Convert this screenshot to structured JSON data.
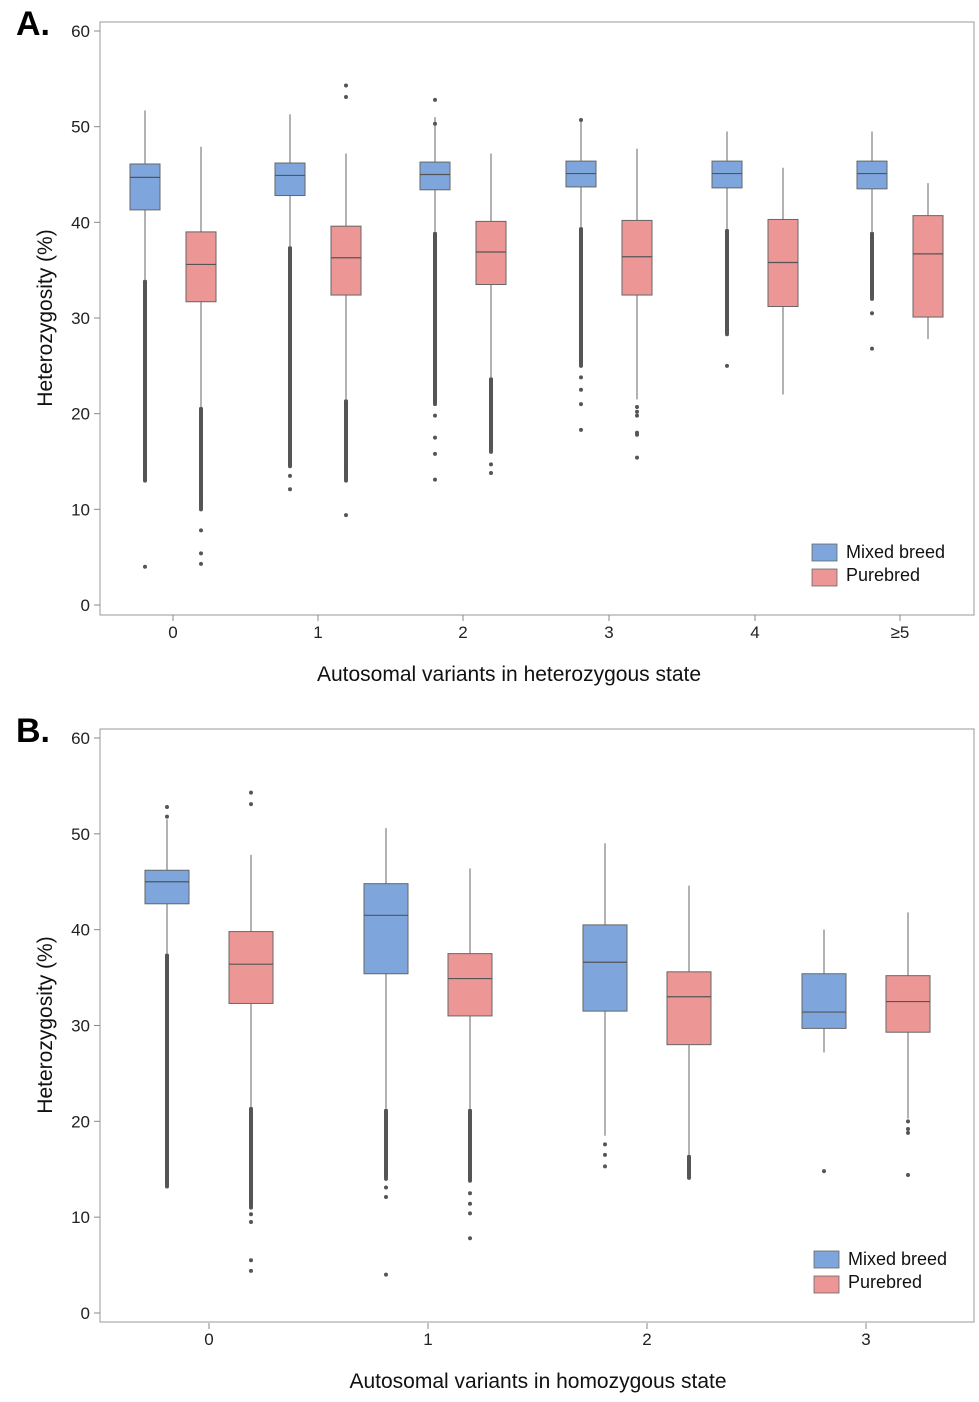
{
  "colors": {
    "mixed": "#7ea6dc",
    "purebred": "#ec9696",
    "median": "#555555",
    "whisker": "#666666",
    "outlier": "#555555",
    "frame": "#999999"
  },
  "chart_data": [
    {
      "panel": "A.",
      "type": "box",
      "xlabel": "Autosomal variants in heterozygous state",
      "ylabel": "Heterozygosity (%)",
      "ylim": [
        0,
        60
      ],
      "yticks": [
        "0",
        "10",
        "20",
        "30",
        "40",
        "50",
        "60"
      ],
      "categories": [
        "0",
        "1",
        "2",
        "3",
        "4",
        "≥5"
      ],
      "legend": {
        "position": "bottom-right",
        "items": [
          "Mixed breed",
          "Purebred"
        ]
      },
      "series": [
        {
          "name": "Mixed breed",
          "boxes": [
            {
              "q1": 41.3,
              "median": 44.7,
              "q3": 46.1,
              "whisker_low": 34.0,
              "whisker_high": 51.7,
              "outlier_band": [
                13.0,
                34.0
              ],
              "outliers": [
                4.0
              ]
            },
            {
              "q1": 42.8,
              "median": 44.9,
              "q3": 46.2,
              "whisker_low": 37.5,
              "whisker_high": 51.3,
              "outlier_band": [
                14.5,
                37.5
              ],
              "outliers": [
                12.1,
                13.5
              ]
            },
            {
              "q1": 43.4,
              "median": 45.0,
              "q3": 46.3,
              "whisker_low": 39.0,
              "whisker_high": 51.0,
              "outlier_band": [
                21.0,
                39.0
              ],
              "outliers": [
                13.1,
                15.8,
                17.5,
                19.8,
                52.8,
                50.3
              ]
            },
            {
              "q1": 43.7,
              "median": 45.1,
              "q3": 46.4,
              "whisker_low": 39.5,
              "whisker_high": 50.5,
              "outlier_band": [
                25.0,
                39.5
              ],
              "outliers": [
                18.3,
                21.0,
                22.5,
                23.8,
                50.7
              ]
            },
            {
              "q1": 43.6,
              "median": 45.1,
              "q3": 46.4,
              "whisker_low": 39.3,
              "whisker_high": 49.5,
              "outlier_band": [
                28.3,
                39.3
              ],
              "outliers": [
                25.0
              ]
            },
            {
              "q1": 43.5,
              "median": 45.1,
              "q3": 46.4,
              "whisker_low": 39.0,
              "whisker_high": 49.5,
              "outlier_band": [
                32.0,
                39.0
              ],
              "outliers": [
                26.8,
                30.5
              ]
            }
          ]
        },
        {
          "name": "Purebred",
          "boxes": [
            {
              "q1": 31.7,
              "median": 35.6,
              "q3": 39.0,
              "whisker_low": 20.7,
              "whisker_high": 47.9,
              "outlier_band": [
                10.0,
                20.7
              ],
              "outliers": [
                4.3,
                5.4,
                7.8
              ]
            },
            {
              "q1": 32.4,
              "median": 36.3,
              "q3": 39.6,
              "whisker_low": 21.5,
              "whisker_high": 47.2,
              "outlier_band": [
                13.0,
                21.5
              ],
              "outliers": [
                9.4,
                53.1,
                54.3
              ]
            },
            {
              "q1": 33.5,
              "median": 36.9,
              "q3": 40.1,
              "whisker_low": 23.8,
              "whisker_high": 47.2,
              "outlier_band": [
                16.0,
                23.8
              ],
              "outliers": [
                13.8,
                14.7
              ]
            },
            {
              "q1": 32.4,
              "median": 36.4,
              "q3": 40.2,
              "whisker_low": 21.5,
              "whisker_high": 47.7,
              "outlier_band": [],
              "outliers": [
                15.4,
                17.8,
                18.0,
                19.8,
                20.2,
                20.7
              ]
            },
            {
              "q1": 31.2,
              "median": 35.8,
              "q3": 40.3,
              "whisker_low": 22.0,
              "whisker_high": 45.7,
              "outlier_band": [],
              "outliers": []
            },
            {
              "q1": 30.1,
              "median": 36.7,
              "q3": 40.7,
              "whisker_low": 27.8,
              "whisker_high": 44.1,
              "outlier_band": [],
              "outliers": []
            }
          ]
        }
      ]
    },
    {
      "panel": "B.",
      "type": "box",
      "xlabel": "Autosomal variants in homozygous state",
      "ylabel": "Heterozygosity (%)",
      "ylim": [
        0,
        60
      ],
      "yticks": [
        "0",
        "10",
        "20",
        "30",
        "40",
        "50",
        "60"
      ],
      "categories": [
        "0",
        "1",
        "2",
        "3"
      ],
      "legend": {
        "position": "bottom-right",
        "items": [
          "Mixed breed",
          "Purebred"
        ]
      },
      "series": [
        {
          "name": "Mixed breed",
          "boxes": [
            {
              "q1": 42.7,
              "median": 45.0,
              "q3": 46.2,
              "whisker_low": 37.5,
              "whisker_high": 51.5,
              "outlier_band": [
                13.2,
                37.5
              ],
              "outliers": [
                51.8,
                52.8
              ]
            },
            {
              "q1": 35.4,
              "median": 41.5,
              "q3": 44.8,
              "whisker_low": 21.3,
              "whisker_high": 50.6,
              "outlier_band": [
                14.0,
                21.3
              ],
              "outliers": [
                4.0,
                12.1,
                13.1
              ]
            },
            {
              "q1": 31.5,
              "median": 36.6,
              "q3": 40.5,
              "whisker_low": 18.5,
              "whisker_high": 49.0,
              "outlier_band": [],
              "outliers": [
                15.3,
                16.5,
                17.6
              ]
            },
            {
              "q1": 29.7,
              "median": 31.4,
              "q3": 35.4,
              "whisker_low": 27.2,
              "whisker_high": 40.0,
              "outlier_band": [],
              "outliers": [
                14.8
              ]
            }
          ]
        },
        {
          "name": "Purebred",
          "boxes": [
            {
              "q1": 32.3,
              "median": 36.4,
              "q3": 39.8,
              "whisker_low": 21.5,
              "whisker_high": 47.8,
              "outlier_band": [
                11.0,
                21.5
              ],
              "outliers": [
                4.4,
                5.5,
                9.5,
                10.3,
                53.1,
                54.3
              ]
            },
            {
              "q1": 31.0,
              "median": 34.9,
              "q3": 37.5,
              "whisker_low": 21.3,
              "whisker_high": 46.4,
              "outlier_band": [
                13.8,
                21.3
              ],
              "outliers": [
                7.8,
                10.4,
                11.4,
                12.5
              ]
            },
            {
              "q1": 28.0,
              "median": 33.0,
              "q3": 35.6,
              "whisker_low": 16.5,
              "whisker_high": 44.6,
              "outlier_band": [
                14.1,
                16.5
              ],
              "outliers": []
            },
            {
              "q1": 29.3,
              "median": 32.5,
              "q3": 35.2,
              "whisker_low": 20.3,
              "whisker_high": 41.8,
              "outlier_band": [],
              "outliers": [
                14.4,
                18.8,
                19.2,
                20.0
              ]
            }
          ]
        }
      ]
    }
  ]
}
